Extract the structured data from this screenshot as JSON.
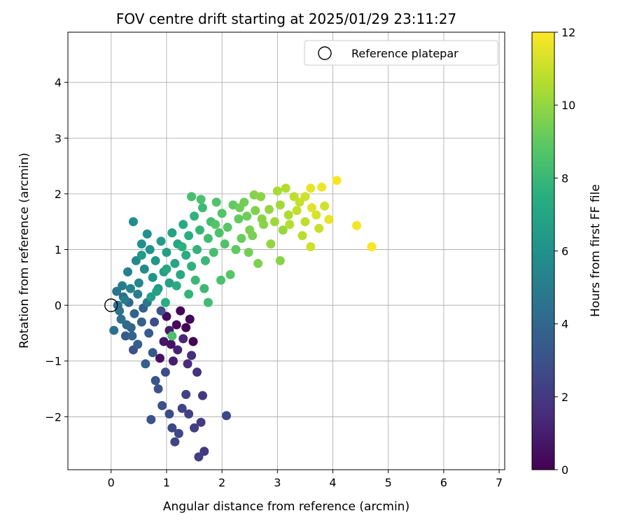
{
  "chart_data": {
    "type": "scatter",
    "title": "FOV centre drift starting at 2025/01/29 23:11:27",
    "xlabel": "Angular distance from reference (arcmin)",
    "ylabel": "Rotation from reference (arcmin)",
    "xlim": [
      -0.78,
      7.1
    ],
    "ylim": [
      -2.95,
      4.9
    ],
    "xticks": [
      0,
      1,
      2,
      3,
      4,
      5,
      6,
      7
    ],
    "yticks": [
      -2,
      -1,
      0,
      1,
      2,
      3,
      4
    ],
    "grid": true,
    "legend": {
      "label": "Reference platepar",
      "location": "upper right"
    },
    "reference_point": {
      "x": 0.0,
      "y": 0.0
    },
    "colorbar": {
      "label": "Hours from first FF file",
      "colormap": "viridis",
      "min": 0,
      "max": 12,
      "ticks": [
        0,
        2,
        4,
        6,
        8,
        10,
        12
      ]
    },
    "points": [
      {
        "x": 4.07,
        "y": 2.24,
        "hours": 11.9
      },
      {
        "x": 4.7,
        "y": 1.05,
        "hours": 11.9
      },
      {
        "x": 4.43,
        "y": 1.43,
        "hours": 11.8
      },
      {
        "x": 3.93,
        "y": 1.54,
        "hours": 11.6
      },
      {
        "x": 3.8,
        "y": 2.12,
        "hours": 11.7
      },
      {
        "x": 3.6,
        "y": 2.1,
        "hours": 11.6
      },
      {
        "x": 3.7,
        "y": 1.62,
        "hours": 11.3
      },
      {
        "x": 3.62,
        "y": 1.75,
        "hours": 11.5
      },
      {
        "x": 3.85,
        "y": 1.78,
        "hours": 11.2
      },
      {
        "x": 3.75,
        "y": 1.38,
        "hours": 11.0
      },
      {
        "x": 3.6,
        "y": 1.05,
        "hours": 11.1
      },
      {
        "x": 3.4,
        "y": 1.85,
        "hours": 11.0
      },
      {
        "x": 3.5,
        "y": 1.5,
        "hours": 10.8
      },
      {
        "x": 3.3,
        "y": 1.95,
        "hours": 10.8
      },
      {
        "x": 3.45,
        "y": 1.25,
        "hours": 10.7
      },
      {
        "x": 3.15,
        "y": 2.1,
        "hours": 10.6
      },
      {
        "x": 3.2,
        "y": 1.62,
        "hours": 10.5
      },
      {
        "x": 3.05,
        "y": 1.8,
        "hours": 10.3
      },
      {
        "x": 3.0,
        "y": 2.05,
        "hours": 10.4
      },
      {
        "x": 2.95,
        "y": 1.5,
        "hours": 10.2
      },
      {
        "x": 3.1,
        "y": 1.35,
        "hours": 10.1
      },
      {
        "x": 2.85,
        "y": 1.72,
        "hours": 10.0
      },
      {
        "x": 2.7,
        "y": 1.95,
        "hours": 9.9
      },
      {
        "x": 2.75,
        "y": 1.45,
        "hours": 9.8
      },
      {
        "x": 2.6,
        "y": 1.7,
        "hours": 9.6
      },
      {
        "x": 2.58,
        "y": 1.98,
        "hours": 9.7
      },
      {
        "x": 2.5,
        "y": 1.35,
        "hours": 9.5
      },
      {
        "x": 2.4,
        "y": 1.85,
        "hours": 9.4
      },
      {
        "x": 2.45,
        "y": 1.6,
        "hours": 9.3
      },
      {
        "x": 2.35,
        "y": 1.2,
        "hours": 9.2
      },
      {
        "x": 2.3,
        "y": 1.55,
        "hours": 9.1
      },
      {
        "x": 2.2,
        "y": 1.8,
        "hours": 9.0
      },
      {
        "x": 2.25,
        "y": 1.0,
        "hours": 9.0
      },
      {
        "x": 2.1,
        "y": 1.4,
        "hours": 8.8
      },
      {
        "x": 2.0,
        "y": 1.65,
        "hours": 8.7
      },
      {
        "x": 2.05,
        "y": 1.1,
        "hours": 8.6
      },
      {
        "x": 1.95,
        "y": 1.3,
        "hours": 8.5
      },
      {
        "x": 1.9,
        "y": 1.85,
        "hours": 8.6
      },
      {
        "x": 1.85,
        "y": 0.95,
        "hours": 8.4
      },
      {
        "x": 1.8,
        "y": 1.5,
        "hours": 8.3
      },
      {
        "x": 1.75,
        "y": 1.2,
        "hours": 8.2
      },
      {
        "x": 1.65,
        "y": 1.75,
        "hours": 8.1
      },
      {
        "x": 1.7,
        "y": 0.8,
        "hours": 8.0
      },
      {
        "x": 1.6,
        "y": 1.35,
        "hours": 7.9
      },
      {
        "x": 1.55,
        "y": 1.0,
        "hours": 7.8
      },
      {
        "x": 1.5,
        "y": 1.6,
        "hours": 7.8
      },
      {
        "x": 1.45,
        "y": 0.7,
        "hours": 7.6
      },
      {
        "x": 1.4,
        "y": 1.25,
        "hours": 7.5
      },
      {
        "x": 1.35,
        "y": 0.9,
        "hours": 7.4
      },
      {
        "x": 1.3,
        "y": 1.45,
        "hours": 7.3
      },
      {
        "x": 1.25,
        "y": 0.55,
        "hours": 7.2
      },
      {
        "x": 1.2,
        "y": 1.1,
        "hours": 7.1
      },
      {
        "x": 1.15,
        "y": 0.75,
        "hours": 7.0
      },
      {
        "x": 1.1,
        "y": 1.3,
        "hours": 6.9
      },
      {
        "x": 1.05,
        "y": 0.4,
        "hours": 6.8
      },
      {
        "x": 1.0,
        "y": 0.95,
        "hours": 6.7
      },
      {
        "x": 0.95,
        "y": 0.6,
        "hours": 6.6
      },
      {
        "x": 0.9,
        "y": 1.15,
        "hours": 6.5
      },
      {
        "x": 0.85,
        "y": 0.3,
        "hours": 6.4
      },
      {
        "x": 0.8,
        "y": 0.8,
        "hours": 6.3
      },
      {
        "x": 0.75,
        "y": 0.5,
        "hours": 6.2
      },
      {
        "x": 0.7,
        "y": 1.0,
        "hours": 6.1
      },
      {
        "x": 0.65,
        "y": 1.28,
        "hours": 6.0
      },
      {
        "x": 0.4,
        "y": 1.5,
        "hours": 5.8
      },
      {
        "x": 0.55,
        "y": 1.1,
        "hours": 5.9
      },
      {
        "x": 0.6,
        "y": 0.65,
        "hours": 5.7
      },
      {
        "x": 0.5,
        "y": 0.4,
        "hours": 5.5
      },
      {
        "x": 0.45,
        "y": 0.8,
        "hours": 5.6
      },
      {
        "x": 0.35,
        "y": 0.3,
        "hours": 5.3
      },
      {
        "x": 0.3,
        "y": 0.6,
        "hours": 5.2
      },
      {
        "x": 0.25,
        "y": 0.1,
        "hours": 5.0
      },
      {
        "x": 0.2,
        "y": 0.35,
        "hours": 4.9
      },
      {
        "x": 0.15,
        "y": -0.1,
        "hours": 4.7
      },
      {
        "x": 0.1,
        "y": 0.25,
        "hours": 4.6
      },
      {
        "x": 0.05,
        "y": -0.45,
        "hours": 4.4
      },
      {
        "x": 0.12,
        "y": 0.0,
        "hours": 4.5
      },
      {
        "x": 0.18,
        "y": -0.25,
        "hours": 4.3
      },
      {
        "x": 0.22,
        "y": 0.15,
        "hours": 4.2
      },
      {
        "x": 0.28,
        "y": -0.35,
        "hours": 4.1
      },
      {
        "x": 0.32,
        "y": 0.05,
        "hours": 4.0
      },
      {
        "x": 0.38,
        "y": -0.55,
        "hours": 3.9
      },
      {
        "x": 0.42,
        "y": -0.15,
        "hours": 3.8
      },
      {
        "x": 0.48,
        "y": -0.7,
        "hours": 3.7
      },
      {
        "x": 0.55,
        "y": -0.3,
        "hours": 3.6
      },
      {
        "x": 0.62,
        "y": -1.05,
        "hours": 3.5
      },
      {
        "x": 0.68,
        "y": -0.5,
        "hours": 3.4
      },
      {
        "x": 0.75,
        "y": -0.85,
        "hours": 3.3
      },
      {
        "x": 0.8,
        "y": -1.35,
        "hours": 3.2
      },
      {
        "x": 0.85,
        "y": -1.5,
        "hours": 3.1
      },
      {
        "x": 0.72,
        "y": -2.05,
        "hours": 3.0
      },
      {
        "x": 0.92,
        "y": -1.8,
        "hours": 2.9
      },
      {
        "x": 0.98,
        "y": -1.2,
        "hours": 2.8
      },
      {
        "x": 1.05,
        "y": -1.95,
        "hours": 2.7
      },
      {
        "x": 1.1,
        "y": -2.2,
        "hours": 2.6
      },
      {
        "x": 1.15,
        "y": -2.45,
        "hours": 2.5
      },
      {
        "x": 1.22,
        "y": -2.3,
        "hours": 2.6
      },
      {
        "x": 1.28,
        "y": -1.85,
        "hours": 2.4
      },
      {
        "x": 1.35,
        "y": -1.6,
        "hours": 2.3
      },
      {
        "x": 1.4,
        "y": -1.95,
        "hours": 2.3
      },
      {
        "x": 1.5,
        "y": -2.2,
        "hours": 2.2
      },
      {
        "x": 1.62,
        "y": -2.1,
        "hours": 2.1
      },
      {
        "x": 1.58,
        "y": -2.72,
        "hours": 2.2
      },
      {
        "x": 1.68,
        "y": -2.62,
        "hours": 2.0
      },
      {
        "x": 1.65,
        "y": -1.62,
        "hours": 1.9
      },
      {
        "x": 2.08,
        "y": -1.98,
        "hours": 2.6
      },
      {
        "x": 1.55,
        "y": -1.2,
        "hours": 1.8
      },
      {
        "x": 1.45,
        "y": -0.9,
        "hours": 1.6
      },
      {
        "x": 1.38,
        "y": -1.05,
        "hours": 1.5
      },
      {
        "x": 1.3,
        "y": -0.6,
        "hours": 1.3
      },
      {
        "x": 1.2,
        "y": -0.8,
        "hours": 1.2
      },
      {
        "x": 1.12,
        "y": -1.0,
        "hours": 1.0
      },
      {
        "x": 1.05,
        "y": -0.45,
        "hours": 0.9
      },
      {
        "x": 0.95,
        "y": -0.65,
        "hours": 0.7
      },
      {
        "x": 0.88,
        "y": -0.95,
        "hours": 0.5
      },
      {
        "x": 1.0,
        "y": -0.2,
        "hours": 0.4
      },
      {
        "x": 1.18,
        "y": -0.35,
        "hours": 0.3
      },
      {
        "x": 1.25,
        "y": -0.1,
        "hours": 0.2
      },
      {
        "x": 1.35,
        "y": -0.4,
        "hours": 0.1
      },
      {
        "x": 1.48,
        "y": -0.65,
        "hours": 0.0
      },
      {
        "x": 1.42,
        "y": -0.25,
        "hours": 0.2
      },
      {
        "x": 1.08,
        "y": -0.7,
        "hours": 0.6
      },
      {
        "x": 0.78,
        "y": -0.3,
        "hours": 2.8
      },
      {
        "x": 0.9,
        "y": -0.1,
        "hours": 3.0
      },
      {
        "x": 0.65,
        "y": 0.05,
        "hours": 4.8
      },
      {
        "x": 0.58,
        "y": -0.05,
        "hours": 3.6
      },
      {
        "x": 0.48,
        "y": 0.2,
        "hours": 5.1
      },
      {
        "x": 0.36,
        "y": -0.4,
        "hours": 3.9
      },
      {
        "x": 0.26,
        "y": -0.55,
        "hours": 3.4
      },
      {
        "x": 0.4,
        "y": -0.8,
        "hours": 3.0
      },
      {
        "x": 1.75,
        "y": 0.05,
        "hours": 8.2
      },
      {
        "x": 1.98,
        "y": 0.45,
        "hours": 8.5
      },
      {
        "x": 2.65,
        "y": 0.75,
        "hours": 9.6
      },
      {
        "x": 2.48,
        "y": 0.95,
        "hours": 9.4
      },
      {
        "x": 2.88,
        "y": 1.1,
        "hours": 10.0
      },
      {
        "x": 3.05,
        "y": 0.8,
        "hours": 9.8
      },
      {
        "x": 2.15,
        "y": 0.55,
        "hours": 8.8
      },
      {
        "x": 1.68,
        "y": 0.3,
        "hours": 8.1
      },
      {
        "x": 1.4,
        "y": 0.2,
        "hours": 7.8
      },
      {
        "x": 1.18,
        "y": 0.35,
        "hours": 7.4
      },
      {
        "x": 0.98,
        "y": 0.05,
        "hours": 7.5
      },
      {
        "x": 2.32,
        "y": 1.75,
        "hours": 9.3
      },
      {
        "x": 1.62,
        "y": 1.9,
        "hours": 8.5
      },
      {
        "x": 1.45,
        "y": 1.95,
        "hours": 8.4
      },
      {
        "x": 1.88,
        "y": 1.45,
        "hours": 8.7
      },
      {
        "x": 2.55,
        "y": 1.25,
        "hours": 9.5
      },
      {
        "x": 2.72,
        "y": 1.55,
        "hours": 9.8
      },
      {
        "x": 3.22,
        "y": 1.45,
        "hours": 10.6
      },
      {
        "x": 3.35,
        "y": 1.7,
        "hours": 10.9
      },
      {
        "x": 3.5,
        "y": 1.95,
        "hours": 11.1
      },
      {
        "x": 1.52,
        "y": 0.45,
        "hours": 8.0
      },
      {
        "x": 0.82,
        "y": 0.25,
        "hours": 6.9
      },
      {
        "x": 0.72,
        "y": 0.15,
        "hours": 6.7
      },
      {
        "x": 1.1,
        "y": -0.55,
        "hours": 8.5
      },
      {
        "x": 1.0,
        "y": 0.65,
        "hours": 7.2
      },
      {
        "x": 0.55,
        "y": 0.9,
        "hours": 6.6
      },
      {
        "x": 1.28,
        "y": 1.05,
        "hours": 7.6
      }
    ]
  }
}
